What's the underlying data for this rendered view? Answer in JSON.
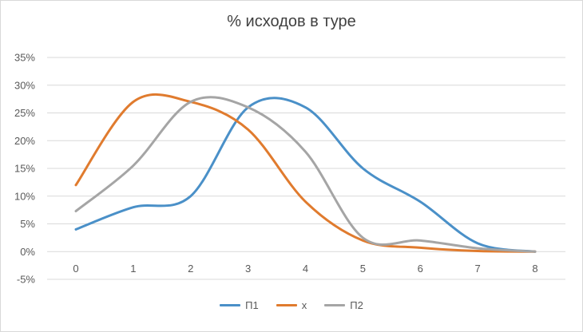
{
  "chart_data": {
    "type": "line",
    "title": "% исходов в туре",
    "x": [
      "0",
      "1",
      "2",
      "3",
      "4",
      "5",
      "6",
      "7",
      "8"
    ],
    "ylim": [
      -0.05,
      0.35
    ],
    "y_ticks": [
      -0.05,
      0,
      0.05,
      0.1,
      0.15,
      0.2,
      0.25,
      0.3,
      0.35
    ],
    "y_tick_labels": [
      "-5%",
      "0%",
      "5%",
      "10%",
      "15%",
      "20%",
      "25%",
      "30%",
      "35%"
    ],
    "grid": true,
    "legend_position": "bottom",
    "series": [
      {
        "name": "П1",
        "color": "#4a90c8",
        "values": [
          0.04,
          0.08,
          0.1,
          0.26,
          0.26,
          0.15,
          0.09,
          0.015,
          0.0
        ]
      },
      {
        "name": "х",
        "color": "#e07b2e",
        "values": [
          0.12,
          0.27,
          0.27,
          0.22,
          0.09,
          0.02,
          0.007,
          0.001,
          0.0
        ]
      },
      {
        "name": "П2",
        "color": "#a5a5a5",
        "values": [
          0.073,
          0.155,
          0.27,
          0.26,
          0.18,
          0.025,
          0.02,
          0.006,
          0.0
        ]
      }
    ]
  }
}
